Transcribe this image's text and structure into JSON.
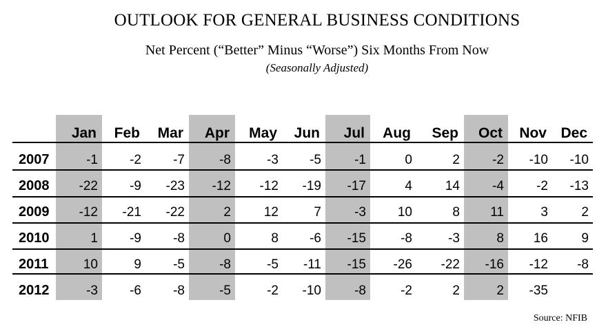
{
  "title": "OUTLOOK FOR GENERAL BUSINESS CONDITIONS",
  "subtitle": "Net Percent (“Better” Minus “Worse”) Six Months From Now",
  "note": "(Seasonally Adjusted)",
  "source": "Source: NFIB",
  "shade_color": "#c0c0c0",
  "chart_data": {
    "type": "table",
    "columns": [
      "Jan",
      "Feb",
      "Mar",
      "Apr",
      "May",
      "Jun",
      "Jul",
      "Aug",
      "Sep",
      "Oct",
      "Nov",
      "Dec"
    ],
    "shaded_columns": [
      "Jan",
      "Apr",
      "Jul",
      "Oct"
    ],
    "rows": [
      {
        "year": "2007",
        "values": [
          "-1",
          "-2",
          "-7",
          "-8",
          "-3",
          "-5",
          "-1",
          "0",
          "2",
          "-2",
          "-10",
          "-10"
        ]
      },
      {
        "year": "2008",
        "values": [
          "-22",
          "-9",
          "-23",
          "-12",
          "-12",
          "-19",
          "-17",
          "4",
          "14",
          "-4",
          "-2",
          "-13"
        ]
      },
      {
        "year": "2009",
        "values": [
          "-12",
          "-21",
          "-22",
          "2",
          "12",
          "7",
          "-3",
          "10",
          "8",
          "11",
          "3",
          "2"
        ]
      },
      {
        "year": "2010",
        "values": [
          "1",
          "-9",
          "-8",
          "0",
          "8",
          "-6",
          "-15",
          "-8",
          "-3",
          "8",
          "16",
          "9"
        ]
      },
      {
        "year": "2011",
        "values": [
          "10",
          "9",
          "-5",
          "-8",
          "-5",
          "-11",
          "-15",
          "-26",
          "-22",
          "-16",
          "-12",
          "-8"
        ]
      },
      {
        "year": "2012",
        "values": [
          "-3",
          "-6",
          "-8",
          "-5",
          "-2",
          "-10",
          "-8",
          "-2",
          "2",
          "2",
          "-35",
          ""
        ]
      }
    ]
  }
}
